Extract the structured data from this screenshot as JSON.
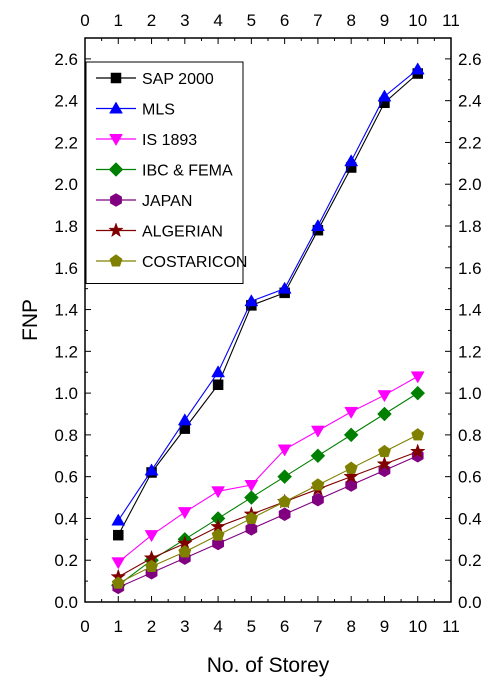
{
  "chart_data": {
    "type": "line",
    "title": "",
    "xlabel": "No. of Storey",
    "ylabel": "FNP",
    "xlim": [
      0,
      11
    ],
    "ylim": [
      0,
      2.7
    ],
    "x_ticks": [
      0,
      1,
      2,
      3,
      4,
      5,
      6,
      7,
      8,
      9,
      10,
      11
    ],
    "y_ticks": [
      0.0,
      0.2,
      0.4,
      0.6,
      0.8,
      1.0,
      1.2,
      1.4,
      1.6,
      1.8,
      2.0,
      2.2,
      2.4,
      2.6
    ],
    "y_tick_labels": [
      "0.0",
      "0.2",
      "0.4",
      "0.6",
      "0.8",
      "1.0",
      "1.2",
      "1.4",
      "1.6",
      "1.8",
      "2.0",
      "2.2",
      "2.4",
      "2.6"
    ],
    "mirror_axes": true,
    "grid": false,
    "legend_position": "top-left",
    "x": [
      1,
      2,
      3,
      4,
      5,
      6,
      7,
      8,
      9,
      10
    ],
    "series": [
      {
        "name": "SAP 2000",
        "color": "#000000",
        "marker": "square",
        "values": [
          0.32,
          0.62,
          0.83,
          1.04,
          1.42,
          1.48,
          1.78,
          2.08,
          2.39,
          2.53
        ]
      },
      {
        "name": "MLS",
        "color": "#0000ff",
        "marker": "triangle-up",
        "values": [
          0.39,
          0.63,
          0.87,
          1.1,
          1.44,
          1.5,
          1.8,
          2.11,
          2.42,
          2.55
        ]
      },
      {
        "name": "IS 1893",
        "color": "#ff00ff",
        "marker": "triangle-down",
        "values": [
          0.19,
          0.32,
          0.43,
          0.53,
          0.56,
          0.73,
          0.82,
          0.91,
          0.99,
          1.08
        ]
      },
      {
        "name": "IBC & FEMA",
        "color": "#008000",
        "marker": "diamond",
        "values": [
          0.08,
          0.2,
          0.3,
          0.4,
          0.5,
          0.6,
          0.7,
          0.8,
          0.9,
          1.0
        ]
      },
      {
        "name": "JAPAN",
        "color": "#800080",
        "marker": "hexagon",
        "values": [
          0.07,
          0.14,
          0.21,
          0.28,
          0.35,
          0.42,
          0.49,
          0.56,
          0.63,
          0.7
        ]
      },
      {
        "name": "ALGERIAN",
        "color": "#800000",
        "marker": "star",
        "values": [
          0.12,
          0.21,
          0.28,
          0.36,
          0.42,
          0.48,
          0.54,
          0.6,
          0.66,
          0.72
        ]
      },
      {
        "name": "COSTARICON",
        "color": "#808000",
        "marker": "pentagon",
        "values": [
          0.09,
          0.17,
          0.24,
          0.32,
          0.4,
          0.48,
          0.56,
          0.64,
          0.72,
          0.8
        ]
      }
    ]
  }
}
